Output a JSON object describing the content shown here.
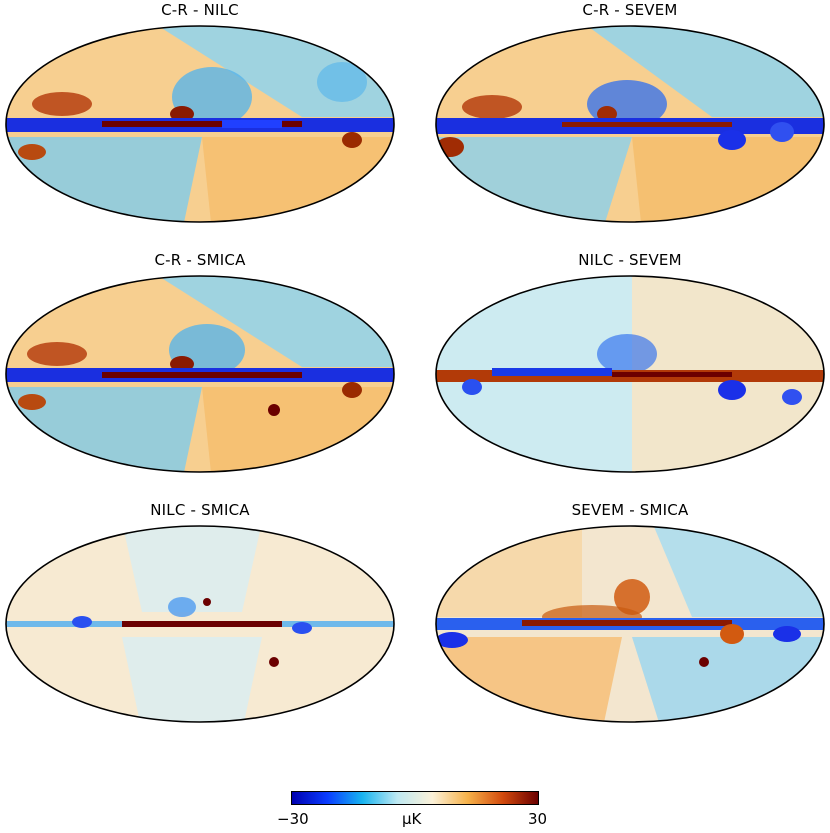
{
  "figure": {
    "panels": [
      {
        "title": "C-R - NILC",
        "sky": "dipole"
      },
      {
        "title": "C-R - SEVEM",
        "sky": "dipole"
      },
      {
        "title": "C-R - SMICA",
        "sky": "dipole"
      },
      {
        "title": "NILC - SEVEM",
        "sky": "flat"
      },
      {
        "title": "NILC - SMICA",
        "sky": "faint"
      },
      {
        "title": "SEVEM - SMICA",
        "sky": "dipole-soft"
      }
    ],
    "projection": "Mollweide",
    "colorbar": {
      "min_label": "−30",
      "max_label": "30",
      "unit_label": "μK",
      "min": -30,
      "max": 30,
      "colors": [
        "#0000b0",
        "#0a3cff",
        "#18b4f0",
        "#bfe9f2",
        "#fbf1d8",
        "#f6b24a",
        "#d24a0d",
        "#6b0000"
      ]
    }
  }
}
